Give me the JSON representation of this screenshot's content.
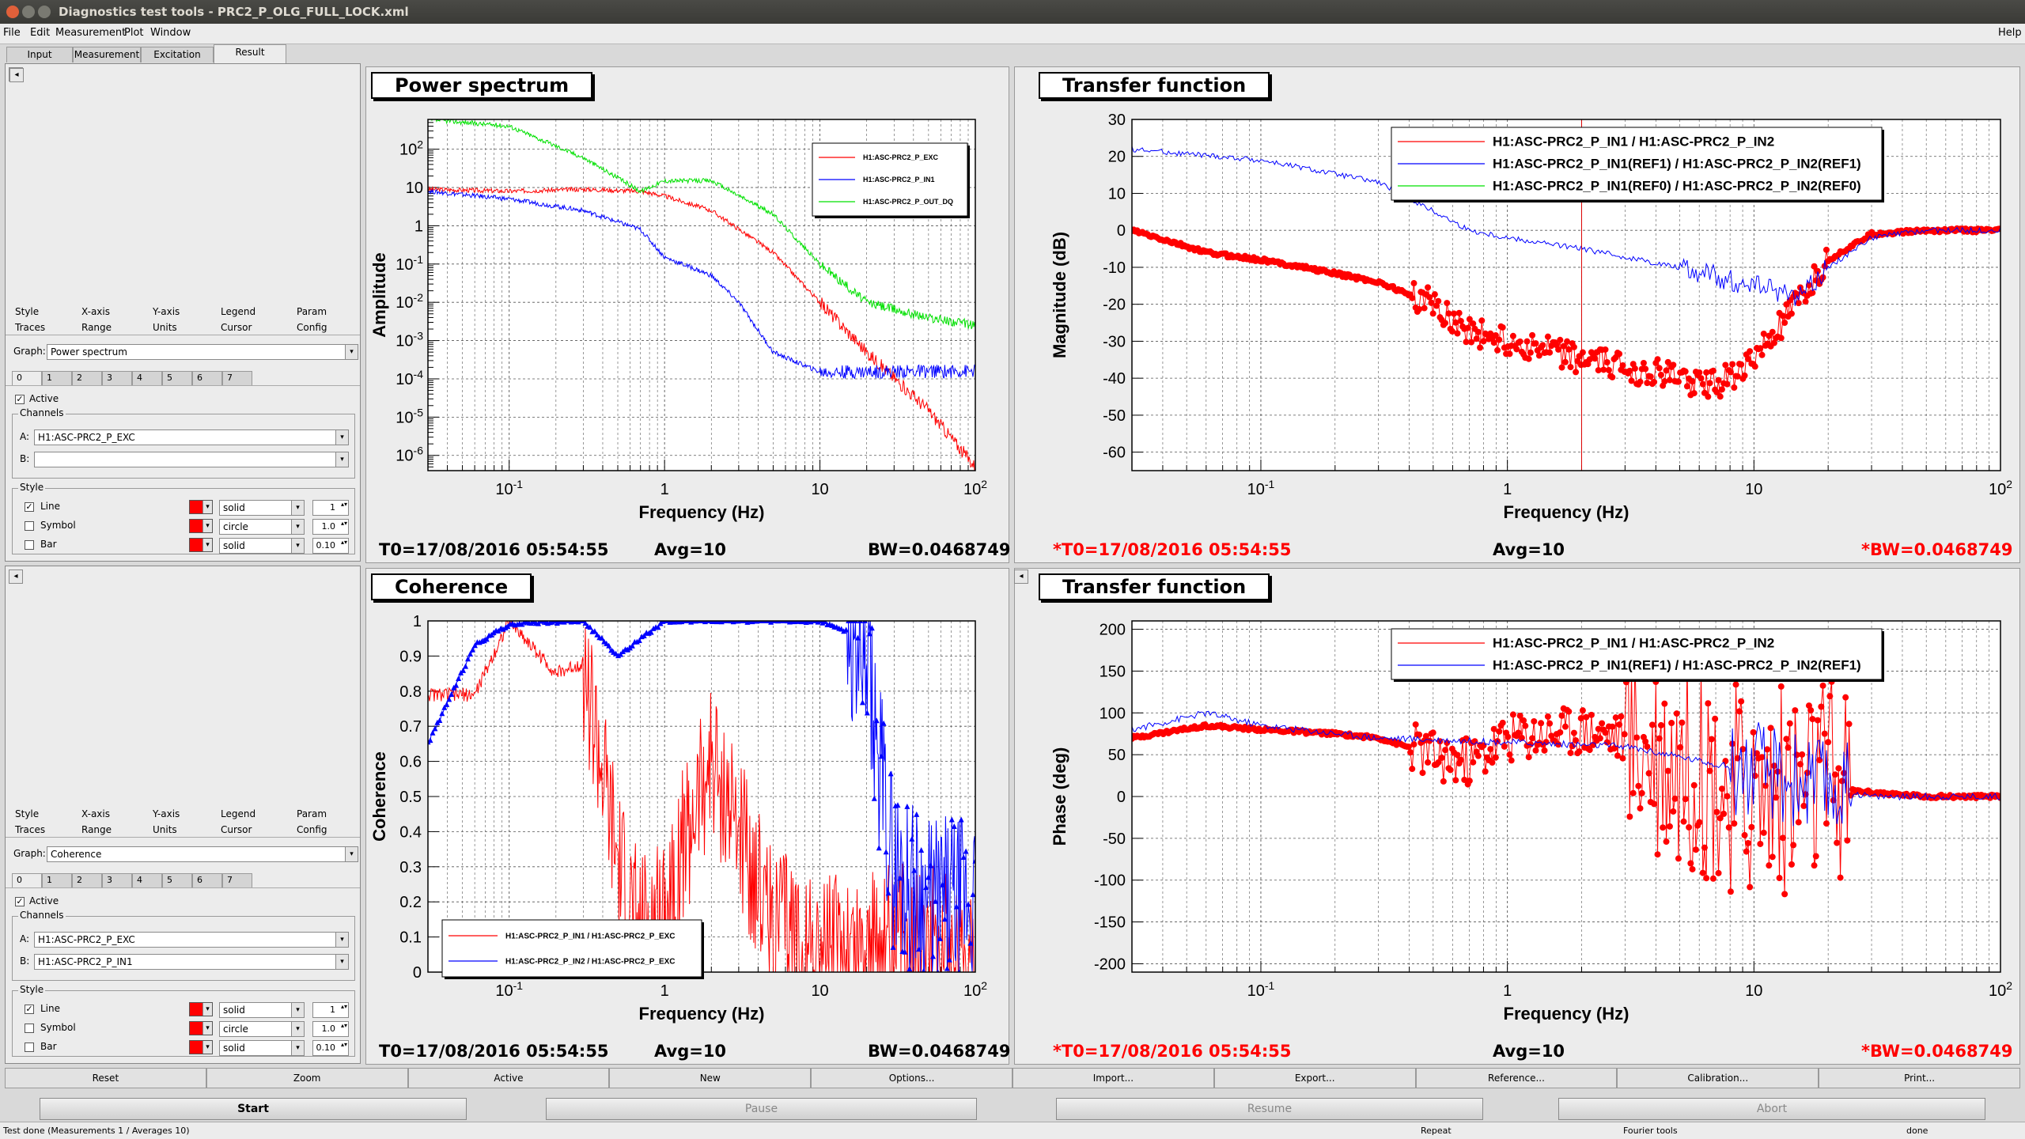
{
  "window": {
    "title": "Diagnostics test tools - PRC2_P_OLG_FULL_LOCK.xml",
    "help": "Help"
  },
  "menu": [
    "File",
    "Edit",
    "Measurement",
    "Plot",
    "Window"
  ],
  "tabs": [
    "Input",
    "Measurement",
    "Excitation",
    "Result"
  ],
  "active_tab": "Result",
  "colors": {
    "red": "#ff0000",
    "blue": "#0000ff",
    "green": "#00e000",
    "ref_red": "#ff0000"
  },
  "option_panels": [
    {
      "style_tabs": [
        "Style",
        "X-axis",
        "Y-axis",
        "Legend",
        "Param"
      ],
      "trace_tabs": [
        "Traces",
        "Range",
        "Units",
        "Cursor",
        "Config"
      ],
      "graph_label": "Graph:",
      "graph_value": "Power spectrum",
      "trace_numbers": [
        "0",
        "1",
        "2",
        "3",
        "4",
        "5",
        "6",
        "7"
      ],
      "active_label": "Active",
      "channels_label": "Channels",
      "channel_a_label": "A:",
      "channel_a": "H1:ASC-PRC2_P_EXC",
      "channel_b_label": "B:",
      "channel_b": "",
      "style_label": "Style",
      "line_label": "Line",
      "line_style": "solid",
      "line_width": "1",
      "symbol_label": "Symbol",
      "symbol_style": "circle",
      "symbol_size": "1.0",
      "bar_label": "Bar",
      "bar_style": "solid",
      "bar_width": "0.10"
    },
    {
      "style_tabs": [
        "Style",
        "X-axis",
        "Y-axis",
        "Legend",
        "Param"
      ],
      "trace_tabs": [
        "Traces",
        "Range",
        "Units",
        "Cursor",
        "Config"
      ],
      "graph_label": "Graph:",
      "graph_value": "Coherence",
      "trace_numbers": [
        "0",
        "1",
        "2",
        "3",
        "4",
        "5",
        "6",
        "7"
      ],
      "active_label": "Active",
      "channels_label": "Channels",
      "channel_a_label": "A:",
      "channel_a": "H1:ASC-PRC2_P_EXC",
      "channel_b_label": "B:",
      "channel_b": "H1:ASC-PRC2_P_IN1",
      "style_label": "Style",
      "line_label": "Line",
      "line_style": "solid",
      "line_width": "1",
      "symbol_label": "Symbol",
      "symbol_style": "circle",
      "symbol_size": "1.0",
      "bar_label": "Bar",
      "bar_style": "solid",
      "bar_width": "0.10"
    }
  ],
  "plots": {
    "power": {
      "title": "Power spectrum",
      "t0": "T0=17/08/2016 05:54:55",
      "avg": "Avg=10",
      "bw": "BW=0.0468749"
    },
    "tf_mag": {
      "title": "Transfer function",
      "t0": "*T0=17/08/2016 05:54:55",
      "avg": "Avg=10",
      "bw": "*BW=0.0468749"
    },
    "coherence": {
      "title": "Coherence",
      "t0": "T0=17/08/2016 05:54:55",
      "avg": "Avg=10",
      "bw": "BW=0.0468749"
    },
    "tf_phase": {
      "title": "Transfer function",
      "t0": "*T0=17/08/2016 05:54:55",
      "avg": "Avg=10",
      "bw": "*BW=0.0468749"
    }
  },
  "chart_data": [
    {
      "type": "line",
      "title": "Power spectrum",
      "xlabel": "Frequency (Hz)",
      "ylabel": "Amplitude",
      "xscale": "log",
      "yscale": "log",
      "xlim": [
        0.03,
        100
      ],
      "ylim": [
        4e-07,
        600
      ],
      "xticks": [
        "10^-1",
        "1",
        "10",
        "10^2"
      ],
      "yticks": [
        "10^2",
        "10",
        "1",
        "10^-1",
        "10^-2",
        "10^-3",
        "10^-4",
        "10^-5",
        "10^-6"
      ],
      "legend_position": "top-right",
      "grid": true,
      "series": [
        {
          "name": "H1:ASC-PRC2_P_EXC",
          "color": "#ff0000",
          "x": [
            0.03,
            0.1,
            0.3,
            0.7,
            1,
            2,
            5,
            10,
            20,
            50,
            100
          ],
          "y": [
            9,
            8,
            9,
            8,
            6,
            2.5,
            0.2,
            0.01,
            0.0005,
            1.5e-05,
            5e-07
          ]
        },
        {
          "name": "H1:ASC-PRC2_P_IN1",
          "color": "#0000ff",
          "x": [
            0.03,
            0.1,
            0.3,
            0.7,
            1,
            1.5,
            2,
            3,
            5,
            10,
            100
          ],
          "y": [
            8,
            5,
            2.5,
            0.8,
            0.15,
            0.08,
            0.05,
            0.01,
            0.0005,
            0.00015,
            0.00016
          ]
        },
        {
          "name": "H1:ASC-PRC2_P_OUT_DQ",
          "color": "#00e000",
          "x": [
            0.03,
            0.1,
            0.3,
            0.7,
            1,
            2,
            5,
            10,
            20,
            50,
            100
          ],
          "y": [
            600,
            400,
            60,
            8,
            15,
            15,
            2,
            0.1,
            0.01,
            0.004,
            0.0025
          ]
        }
      ]
    },
    {
      "type": "scatter",
      "title": "Transfer function",
      "xlabel": "Frequency (Hz)",
      "ylabel": "Magnitude (dB)",
      "xscale": "log",
      "xlim": [
        0.03,
        100
      ],
      "ylim": [
        -65,
        30
      ],
      "xticks": [
        "10^-1",
        "1",
        "10",
        "10^2"
      ],
      "yticks": [
        30,
        20,
        10,
        0,
        -10,
        -20,
        -30,
        -40,
        -50,
        -60
      ],
      "legend_position": "top-right",
      "grid": true,
      "series": [
        {
          "name": "H1:ASC-PRC2_P_IN1 / H1:ASC-PRC2_P_IN2",
          "color": "#ff0000",
          "x": [
            0.03,
            0.06,
            0.1,
            0.15,
            0.3,
            0.5,
            0.7,
            1,
            2,
            3,
            5,
            7,
            10,
            15,
            20,
            30,
            50,
            100
          ],
          "y": [
            0,
            -6,
            -8,
            -10,
            -14,
            -20,
            -27,
            -30,
            -35,
            -37,
            -40,
            -42,
            -35,
            -20,
            -8,
            -1,
            0,
            0
          ]
        },
        {
          "name": "H1:ASC-PRC2_P_IN1(REF1) / H1:ASC-PRC2_P_IN2(REF1)",
          "color": "#0000ff",
          "x": [
            0.03,
            0.1,
            0.3,
            0.7,
            1,
            2,
            5,
            10,
            15,
            20,
            30,
            50,
            100
          ],
          "y": [
            22,
            19,
            13,
            0,
            -2,
            -5,
            -10,
            -15,
            -18,
            -10,
            -2,
            0,
            0
          ]
        },
        {
          "name": "H1:ASC-PRC2_P_IN1(REF0) / H1:ASC-PRC2_P_IN2(REF0)",
          "color": "#00e000",
          "x": [],
          "y": []
        }
      ]
    },
    {
      "type": "line",
      "title": "Coherence",
      "xlabel": "Frequency (Hz)",
      "ylabel": "Coherence",
      "xscale": "log",
      "xlim": [
        0.03,
        100
      ],
      "ylim": [
        0,
        1
      ],
      "xticks": [
        "10^-1",
        "1",
        "10",
        "10^2"
      ],
      "yticks": [
        1,
        0.9,
        0.8,
        0.7,
        0.6,
        0.5,
        0.4,
        0.3,
        0.2,
        0.1,
        0
      ],
      "legend_position": "bottom-left",
      "grid": true,
      "series": [
        {
          "name": "H1:ASC-PRC2_P_IN1 / H1:ASC-PRC2_P_EXC",
          "color": "#ff0000",
          "x": [
            0.03,
            0.06,
            0.1,
            0.2,
            0.3,
            0.5,
            0.7,
            1,
            2,
            5,
            10,
            50,
            100
          ],
          "y": [
            0.79,
            0.79,
            1.0,
            0.85,
            0.88,
            0.3,
            0.1,
            0.2,
            0.6,
            0.15,
            0.05,
            0.1,
            0.05
          ]
        },
        {
          "name": "H1:ASC-PRC2_P_IN2 / H1:ASC-PRC2_P_EXC",
          "color": "#0000ff",
          "x": [
            0.03,
            0.06,
            0.1,
            0.3,
            0.5,
            1,
            3,
            10,
            15,
            20,
            30,
            50,
            100
          ],
          "y": [
            0.65,
            0.93,
            0.99,
            1.0,
            0.9,
            1.0,
            1.0,
            1.0,
            0.97,
            0.85,
            0.3,
            0.2,
            0.2
          ]
        }
      ]
    },
    {
      "type": "scatter",
      "title": "Transfer function",
      "xlabel": "Frequency (Hz)",
      "ylabel": "Phase (deg)",
      "xscale": "log",
      "xlim": [
        0.03,
        100
      ],
      "ylim": [
        -210,
        210
      ],
      "xticks": [
        "10^-1",
        "1",
        "10",
        "10^2"
      ],
      "yticks": [
        200,
        150,
        100,
        50,
        0,
        -50,
        -100,
        -150,
        -200
      ],
      "legend_position": "top-right",
      "grid": true,
      "series": [
        {
          "name": "H1:ASC-PRC2_P_IN1 / H1:ASC-PRC2_P_IN2",
          "color": "#ff0000",
          "x": [
            0.03,
            0.06,
            0.1,
            0.2,
            0.3,
            0.5,
            0.7,
            1,
            2,
            3,
            5,
            10,
            20,
            30,
            50,
            100
          ],
          "y": [
            70,
            85,
            80,
            75,
            70,
            50,
            40,
            70,
            80,
            70,
            40,
            0,
            10,
            5,
            0,
            0
          ]
        },
        {
          "name": "H1:ASC-PRC2_P_IN1(REF1) / H1:ASC-PRC2_P_IN2(REF1)",
          "color": "#0000ff",
          "x": [
            0.03,
            0.06,
            0.1,
            0.3,
            1,
            3,
            10,
            20,
            30,
            50,
            100
          ],
          "y": [
            80,
            100,
            85,
            70,
            65,
            60,
            30,
            10,
            0,
            0,
            0
          ]
        }
      ]
    }
  ],
  "bottom_buttons": [
    "Reset",
    "Zoom",
    "Active",
    "New",
    "Options...",
    "Import...",
    "Export...",
    "Reference...",
    "Calibration...",
    "Print..."
  ],
  "action_buttons": [
    "Start",
    "Pause",
    "Resume",
    "Abort"
  ],
  "status": {
    "left": "Test done (Measurements 1 / Averages 10)",
    "repeat": "Repeat",
    "fourier": "Fourier tools",
    "done": "done"
  }
}
